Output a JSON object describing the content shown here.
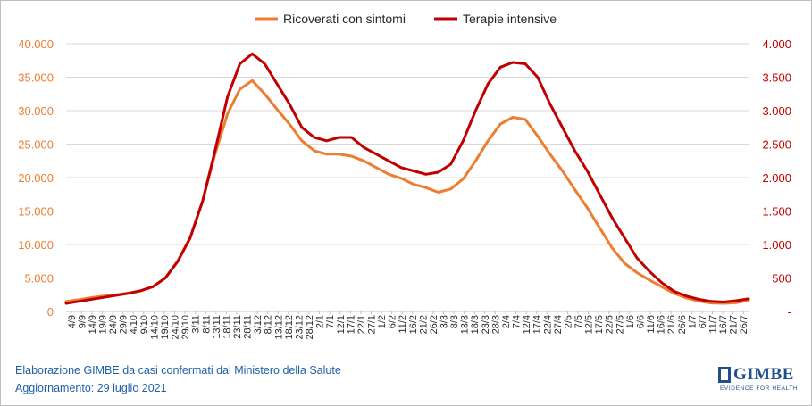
{
  "chart_data": {
    "type": "line",
    "legend": {
      "placement": "top-center",
      "entries": [
        {
          "name": "Ricoverati con sintomi",
          "color": "#ed7d31"
        },
        {
          "name": "Terapie intensive",
          "color": "#c00000"
        }
      ]
    },
    "x_ticks": [
      "4/9",
      "9/9",
      "14/9",
      "19/9",
      "24/9",
      "29/9",
      "4/10",
      "9/10",
      "14/10",
      "19/10",
      "24/10",
      "29/10",
      "3/11",
      "8/11",
      "13/11",
      "18/11",
      "23/11",
      "28/11",
      "3/12",
      "8/12",
      "13/12",
      "18/12",
      "23/12",
      "28/12",
      "2/1",
      "7/1",
      "12/1",
      "17/1",
      "22/1",
      "27/1",
      "1/2",
      "6/2",
      "11/2",
      "16/2",
      "21/2",
      "26/2",
      "3/3",
      "8/3",
      "13/3",
      "18/3",
      "23/3",
      "28/3",
      "2/4",
      "7/4",
      "12/4",
      "17/4",
      "22/4",
      "27/4",
      "2/5",
      "7/5",
      "12/5",
      "17/5",
      "22/5",
      "27/5",
      "1/6",
      "6/6",
      "11/6",
      "16/6",
      "21/6",
      "26/6",
      "1/7",
      "6/7",
      "11/7",
      "16/7",
      "21/7",
      "26/7"
    ],
    "y_left": {
      "min": 0,
      "max": 40000,
      "ticks": [
        "0",
        "5.000",
        "10.000",
        "15.000",
        "20.000",
        "25.000",
        "30.000",
        "35.000",
        "40.000"
      ],
      "color": "#ed7d31"
    },
    "y_right": {
      "min": 0,
      "max": 4000,
      "ticks": [
        "-",
        "500",
        "1.000",
        "1.500",
        "2.000",
        "2.500",
        "3.000",
        "3.500",
        "4.000"
      ],
      "color": "#c00000"
    },
    "gridlines": true,
    "series": [
      {
        "name": "Ricoverati con sintomi",
        "axis": "left",
        "color": "#ed7d31",
        "values": [
          1500,
          1750,
          2050,
          2300,
          2500,
          2750,
          3050,
          3700,
          5000,
          7500,
          11000,
          16500,
          23500,
          29500,
          33200,
          34500,
          32500,
          30200,
          28000,
          25500,
          24000,
          23500,
          23500,
          23200,
          22500,
          21500,
          20500,
          19900,
          19000,
          18500,
          17800,
          18300,
          19800,
          22500,
          25500,
          28000,
          29000,
          28700,
          26200,
          23500,
          21000,
          18200,
          15500,
          12500,
          9500,
          7200,
          5800,
          4700,
          3700,
          2700,
          2000,
          1550,
          1250,
          1200,
          1300,
          1700
        ]
      },
      {
        "name": "Terapie intensive",
        "axis": "right",
        "color": "#c00000",
        "values": [
          120,
          150,
          180,
          210,
          240,
          270,
          310,
          370,
          500,
          750,
          1100,
          1650,
          2400,
          3200,
          3700,
          3850,
          3700,
          3400,
          3100,
          2750,
          2600,
          2550,
          2600,
          2600,
          2450,
          2350,
          2250,
          2150,
          2100,
          2050,
          2080,
          2200,
          2550,
          3000,
          3400,
          3650,
          3720,
          3700,
          3500,
          3100,
          2750,
          2400,
          2100,
          1750,
          1400,
          1100,
          800,
          600,
          430,
          300,
          230,
          180,
          150,
          140,
          160,
          190
        ]
      }
    ]
  },
  "footer": {
    "line1": "Elaborazione GIMBE da casi confermati dal Ministero della Salute",
    "line2": "Aggiornamento: 29 luglio 2021"
  },
  "logo": {
    "name": "GIMBE",
    "tagline": "EVIDENCE FOR HEALTH"
  }
}
